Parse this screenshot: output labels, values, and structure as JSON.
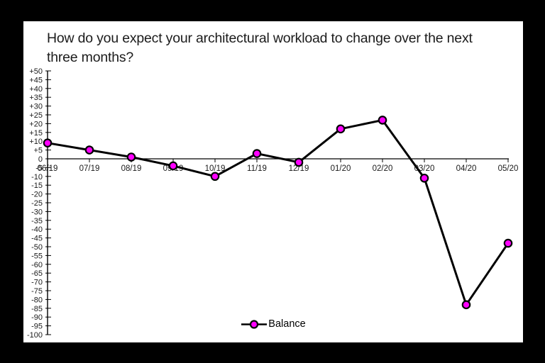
{
  "window": {
    "frame_color": "#000000",
    "card_color": "#ffffff"
  },
  "chart_data": {
    "type": "line",
    "title": "How do you expect your architectural workload to change over the next three months?",
    "categories": [
      "06/19",
      "07/19",
      "08/19",
      "09/19",
      "10/19",
      "11/19",
      "12/19",
      "01/20",
      "02/20",
      "03/20",
      "04/20",
      "05/20"
    ],
    "series": [
      {
        "name": "Balance",
        "values": [
          9,
          5,
          1,
          -4,
          -10,
          3,
          -2,
          17,
          22,
          -11,
          -83,
          -48
        ],
        "line_color": "#000000",
        "marker_color": "#ff00ff",
        "marker_outline": "#000000"
      }
    ],
    "xlabel": "",
    "ylabel": "",
    "grid": false,
    "legend": {
      "label": "Balance",
      "position": "bottom-center"
    },
    "y_axis": {
      "min": -100,
      "max": 50,
      "step": 5,
      "tick_labels": [
        "+50",
        "+45",
        "+40",
        "+35",
        "+30",
        "+25",
        "+20",
        "+15",
        "+10",
        "+5",
        "0",
        "-5",
        "-10",
        "-15",
        "-20",
        "-25",
        "-30",
        "-35",
        "-40",
        "-45",
        "-50",
        "-55",
        "-60",
        "-65",
        "-70",
        "-75",
        "-80",
        "-85",
        "-90",
        "-95",
        "-100"
      ]
    },
    "x_axis": {
      "zero_line": true,
      "tick_labels": [
        "06/19",
        "07/19",
        "08/19",
        "09/19",
        "10/19",
        "11/19",
        "12/19",
        "01/20",
        "02/20",
        "03/20",
        "04/20",
        "05/20"
      ]
    }
  }
}
